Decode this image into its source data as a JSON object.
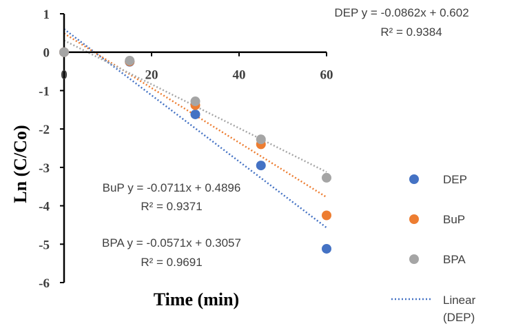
{
  "chart_data": {
    "type": "scatter",
    "xlabel": "Time (min)",
    "ylabel": "Ln (C/Co)",
    "xlim": [
      0,
      60
    ],
    "ylim": [
      -6,
      1
    ],
    "x_ticks": [
      0,
      20,
      40,
      60
    ],
    "y_ticks": [
      1,
      0,
      -1,
      -2,
      -3,
      -4,
      -5,
      -6
    ],
    "x": [
      0,
      15,
      30,
      45,
      60
    ],
    "series": [
      {
        "name": "DEP",
        "color": "#4472C4",
        "values": [
          0,
          -0.25,
          -1.62,
          -2.95,
          -5.12
        ]
      },
      {
        "name": "BuP",
        "color": "#ED7D31",
        "values": [
          0,
          -0.24,
          -1.38,
          -2.4,
          -4.25
        ]
      },
      {
        "name": "BPA",
        "color": "#A5A5A5",
        "values": [
          0,
          -0.22,
          -1.28,
          -2.27,
          -3.27
        ]
      }
    ],
    "trendlines": [
      {
        "series": "DEP",
        "color": "#4472C4",
        "slope": -0.0862,
        "intercept": 0.602,
        "equation": "DEP y = -0.0862x + 0.602",
        "r2": "R² = 0.9384"
      },
      {
        "series": "BuP",
        "color": "#ED7D31",
        "slope": -0.0711,
        "intercept": 0.4896,
        "equation": "BuP y = -0.0711x + 0.4896",
        "r2": "R² = 0.9371"
      },
      {
        "series": "BPA",
        "color": "#A5A5A5",
        "slope": -0.0571,
        "intercept": 0.3057,
        "equation": "BPA y = -0.0571x + 0.3057",
        "r2": "R² = 0.9691"
      }
    ],
    "legend": {
      "position": "right",
      "items": [
        {
          "label": "DEP",
          "marker": "circle",
          "color": "#4472C4"
        },
        {
          "label": "BuP",
          "marker": "circle",
          "color": "#ED7D31"
        },
        {
          "label": "BPA",
          "marker": "circle",
          "color": "#A5A5A5"
        },
        {
          "label_line1": "Linear",
          "label_line2": "(DEP)",
          "marker": "dotted-line",
          "color": "#4472C4"
        }
      ]
    },
    "grid": false
  }
}
